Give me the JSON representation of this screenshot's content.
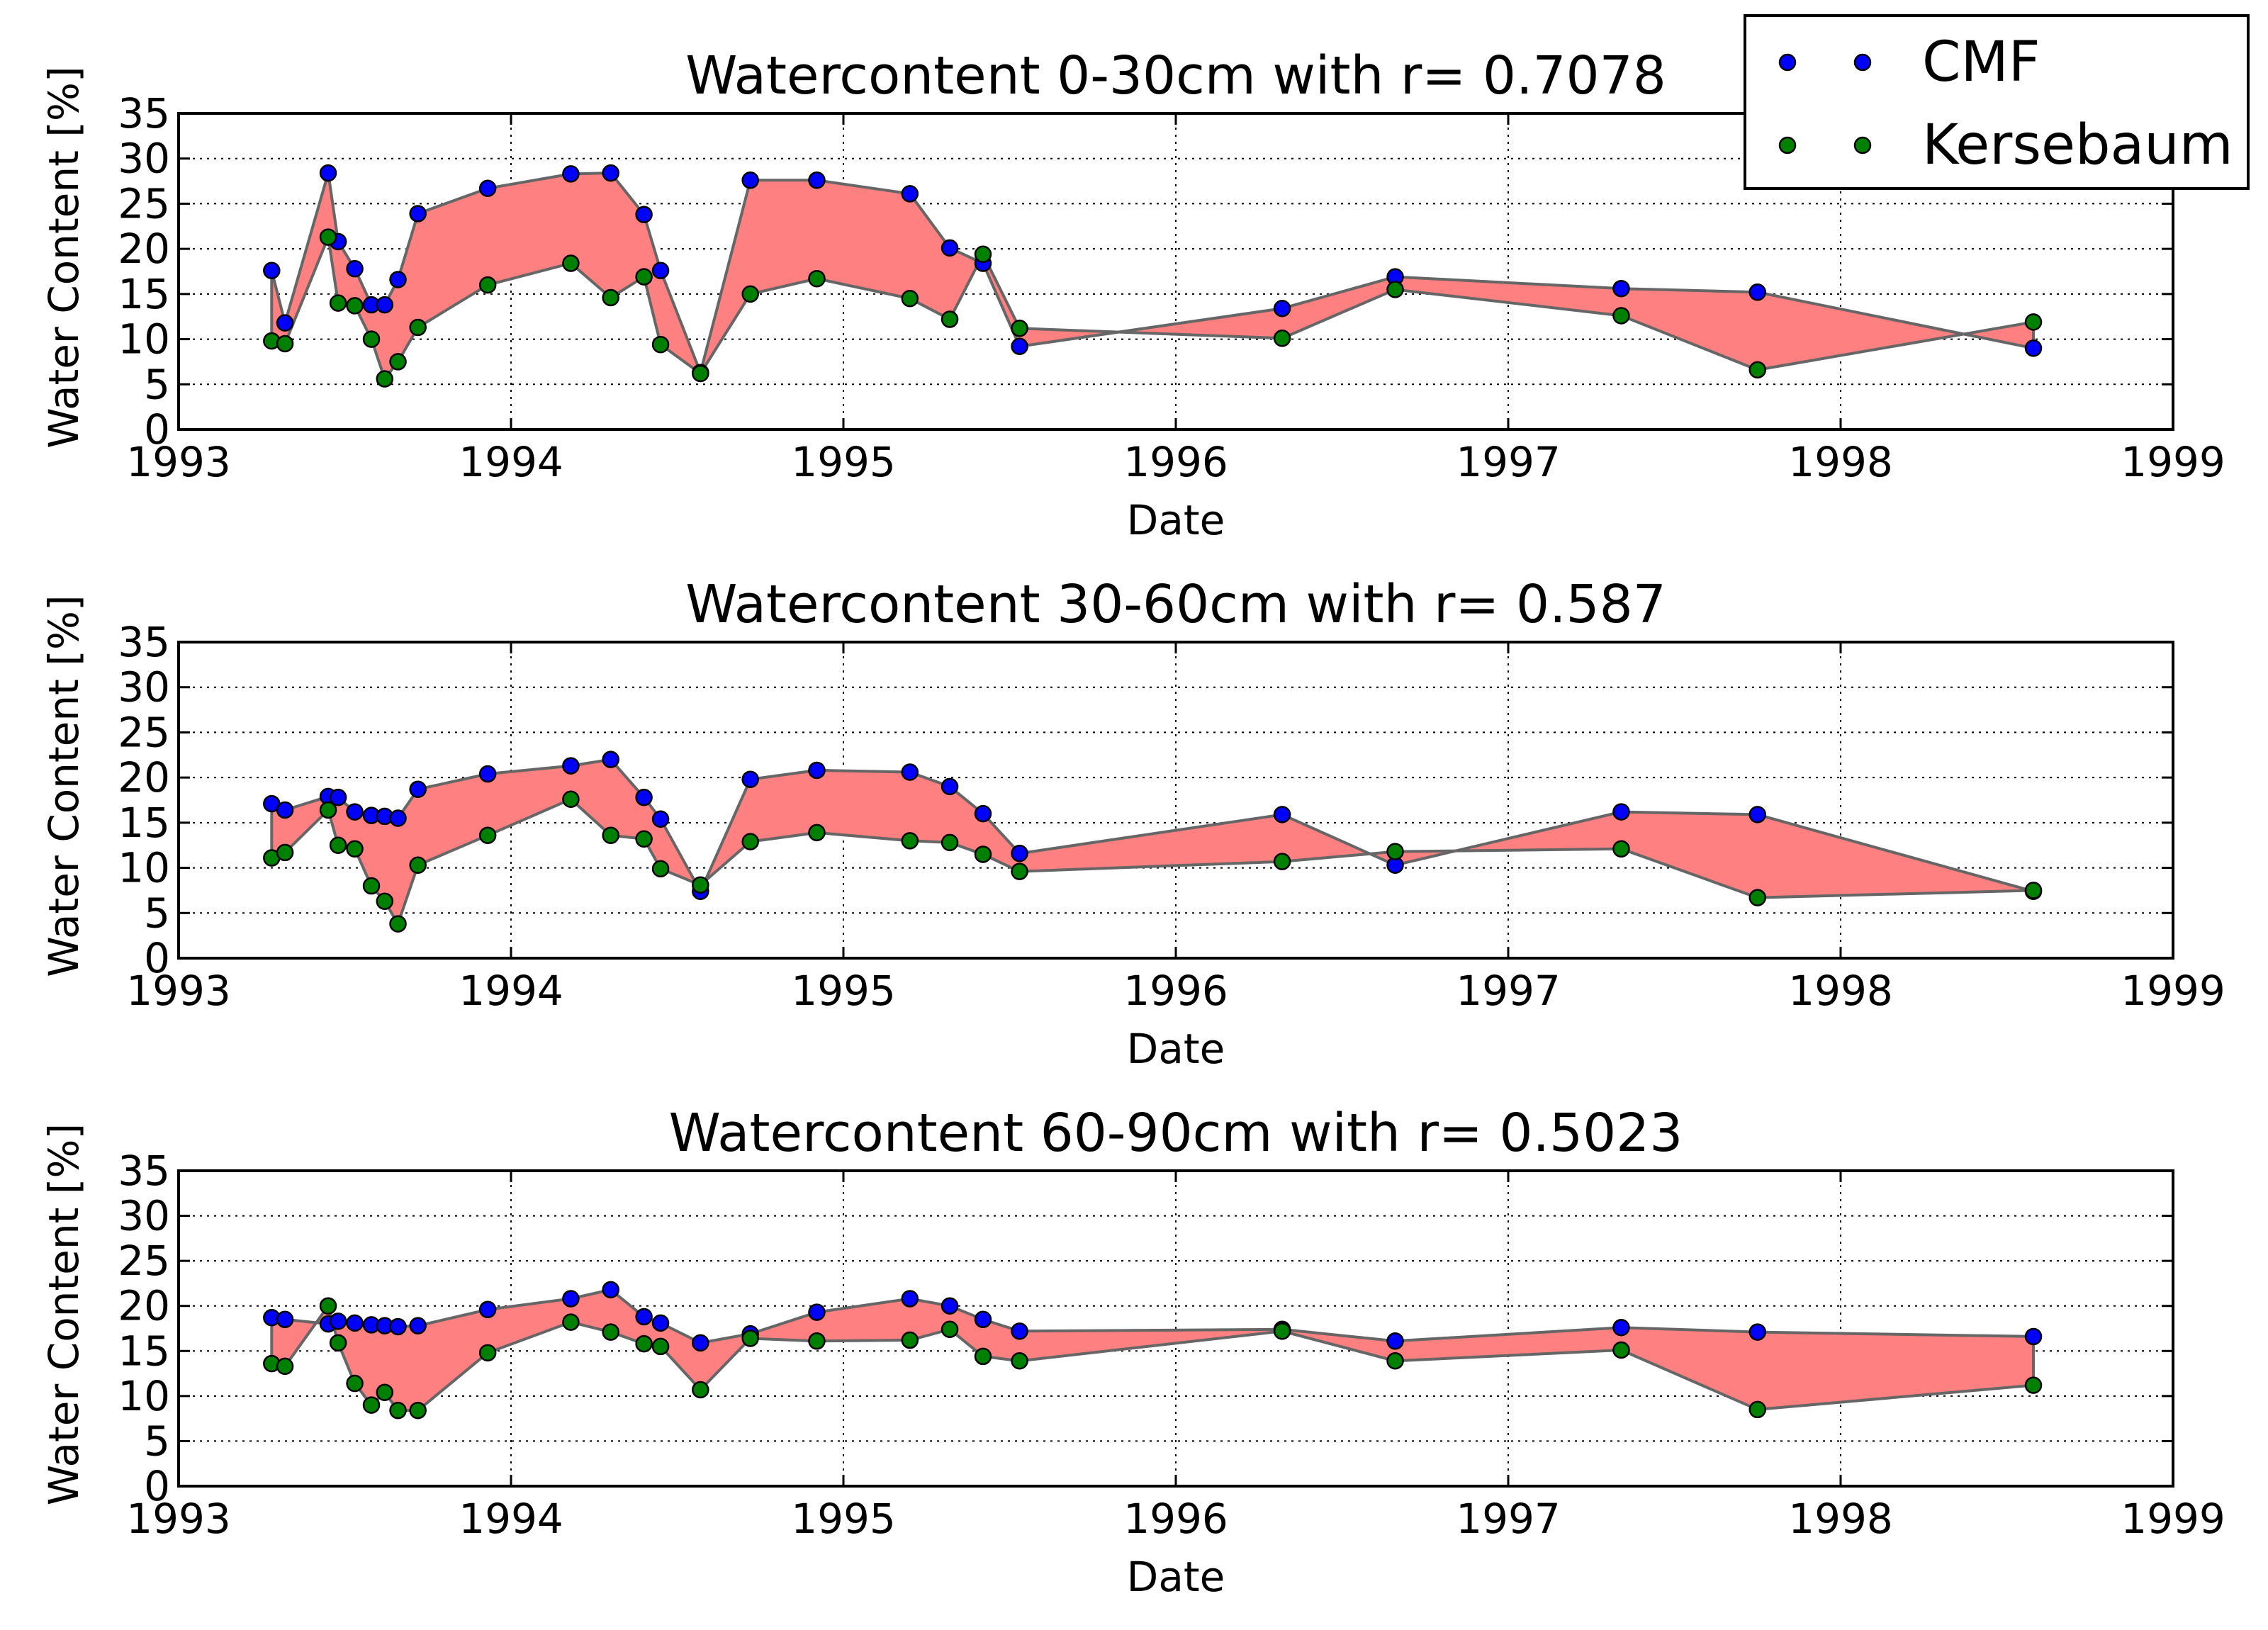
{
  "chart_data": [
    {
      "type": "area",
      "title": "Watercontent 0-30cm with r= 0.7078",
      "xlabel": "Date",
      "ylabel": "Water Content [%]",
      "xlim": [
        1993,
        1999
      ],
      "ylim": [
        0,
        35
      ],
      "x_ticks": [
        "1993",
        "1994",
        "1995",
        "1996",
        "1997",
        "1998",
        "1999"
      ],
      "y_ticks": [
        "0",
        "5",
        "10",
        "15",
        "20",
        "25",
        "30",
        "35"
      ],
      "grid": true,
      "x": [
        1993.28,
        1993.32,
        1993.45,
        1993.48,
        1993.53,
        1993.58,
        1993.62,
        1993.66,
        1993.72,
        1993.93,
        1994.18,
        1994.3,
        1994.4,
        1994.45,
        1994.57,
        1994.72,
        1994.92,
        1995.2,
        1995.32,
        1995.42,
        1995.53,
        1996.32,
        1996.66,
        1997.34,
        1997.75,
        1998.58
      ],
      "series": [
        {
          "name": "CMF",
          "values": [
            17.6,
            11.8,
            28.4,
            20.8,
            17.8,
            13.8,
            13.8,
            16.6,
            23.9,
            26.7,
            28.3,
            28.4,
            23.8,
            17.6,
            6.3,
            27.6,
            27.6,
            26.1,
            20.1,
            18.4,
            9.2,
            13.4,
            16.9,
            15.6,
            15.2,
            9.0
          ]
        },
        {
          "name": "Kersebaum",
          "values": [
            9.8,
            9.5,
            21.3,
            14.0,
            13.7,
            10.0,
            5.6,
            7.5,
            11.3,
            16.0,
            18.4,
            14.6,
            16.9,
            9.4,
            6.2,
            15.0,
            16.7,
            14.5,
            12.2,
            19.4,
            11.2,
            10.1,
            15.5,
            12.6,
            6.6,
            11.9
          ]
        }
      ],
      "fill_color": "#ff8080",
      "line_color": "#666666",
      "marker_colors": [
        "#0000ff",
        "#008000"
      ],
      "legend": {
        "placement": "top-right",
        "entries": [
          "CMF",
          "Kersebaum"
        ]
      }
    },
    {
      "type": "area",
      "title": "Watercontent 30-60cm with r= 0.587",
      "xlabel": "Date",
      "ylabel": "Water Content [%]",
      "xlim": [
        1993,
        1999
      ],
      "ylim": [
        0,
        35
      ],
      "x_ticks": [
        "1993",
        "1994",
        "1995",
        "1996",
        "1997",
        "1998",
        "1999"
      ],
      "y_ticks": [
        "0",
        "5",
        "10",
        "15",
        "20",
        "25",
        "30",
        "35"
      ],
      "grid": true,
      "x": [
        1993.28,
        1993.32,
        1993.45,
        1993.48,
        1993.53,
        1993.58,
        1993.62,
        1993.66,
        1993.72,
        1993.93,
        1994.18,
        1994.3,
        1994.4,
        1994.45,
        1994.57,
        1994.72,
        1994.92,
        1995.2,
        1995.32,
        1995.42,
        1995.53,
        1996.32,
        1996.66,
        1997.34,
        1997.75,
        1998.58
      ],
      "series": [
        {
          "name": "CMF",
          "values": [
            17.1,
            16.4,
            17.9,
            17.8,
            16.2,
            15.8,
            15.7,
            15.5,
            18.7,
            20.4,
            21.3,
            22.0,
            17.8,
            15.4,
            7.4,
            19.8,
            20.8,
            20.6,
            19.0,
            16.0,
            11.6,
            15.9,
            10.3,
            16.2,
            15.9,
            7.4
          ]
        },
        {
          "name": "Kersebaum",
          "values": [
            11.1,
            11.7,
            16.4,
            12.5,
            12.1,
            8.0,
            6.3,
            3.8,
            10.3,
            13.6,
            17.6,
            13.6,
            13.2,
            9.9,
            8.1,
            12.9,
            13.9,
            13.0,
            12.8,
            11.5,
            9.6,
            10.7,
            11.8,
            12.1,
            6.7,
            7.5
          ]
        }
      ],
      "fill_color": "#ff8080",
      "line_color": "#666666",
      "marker_colors": [
        "#0000ff",
        "#008000"
      ]
    },
    {
      "type": "area",
      "title": "Watercontent 60-90cm with r= 0.5023",
      "xlabel": "Date",
      "ylabel": "Water Content [%]",
      "xlim": [
        1993,
        1999
      ],
      "ylim": [
        0,
        35
      ],
      "x_ticks": [
        "1993",
        "1994",
        "1995",
        "1996",
        "1997",
        "1998",
        "1999"
      ],
      "y_ticks": [
        "0",
        "5",
        "10",
        "15",
        "20",
        "25",
        "30",
        "35"
      ],
      "grid": true,
      "x": [
        1993.28,
        1993.32,
        1993.45,
        1993.48,
        1993.53,
        1993.58,
        1993.62,
        1993.66,
        1993.72,
        1993.93,
        1994.18,
        1994.3,
        1994.4,
        1994.45,
        1994.57,
        1994.72,
        1994.92,
        1995.2,
        1995.32,
        1995.42,
        1995.53,
        1996.32,
        1996.66,
        1997.34,
        1997.75,
        1998.58
      ],
      "series": [
        {
          "name": "CMF",
          "values": [
            18.7,
            18.5,
            18.0,
            18.3,
            18.1,
            17.9,
            17.8,
            17.7,
            17.8,
            19.6,
            20.8,
            21.8,
            18.8,
            18.1,
            15.9,
            16.9,
            19.3,
            20.8,
            20.0,
            18.5,
            17.2,
            17.4,
            16.1,
            17.6,
            17.1,
            16.6
          ]
        },
        {
          "name": "Kersebaum",
          "values": [
            13.6,
            13.3,
            20.0,
            15.9,
            11.4,
            9.0,
            10.4,
            8.4,
            8.4,
            14.8,
            18.2,
            17.1,
            15.8,
            15.5,
            10.7,
            16.4,
            16.1,
            16.2,
            17.4,
            14.4,
            13.9,
            17.2,
            13.9,
            15.1,
            8.5,
            11.2
          ]
        }
      ],
      "fill_color": "#ff8080",
      "line_color": "#666666",
      "marker_colors": [
        "#0000ff",
        "#008000"
      ]
    }
  ]
}
